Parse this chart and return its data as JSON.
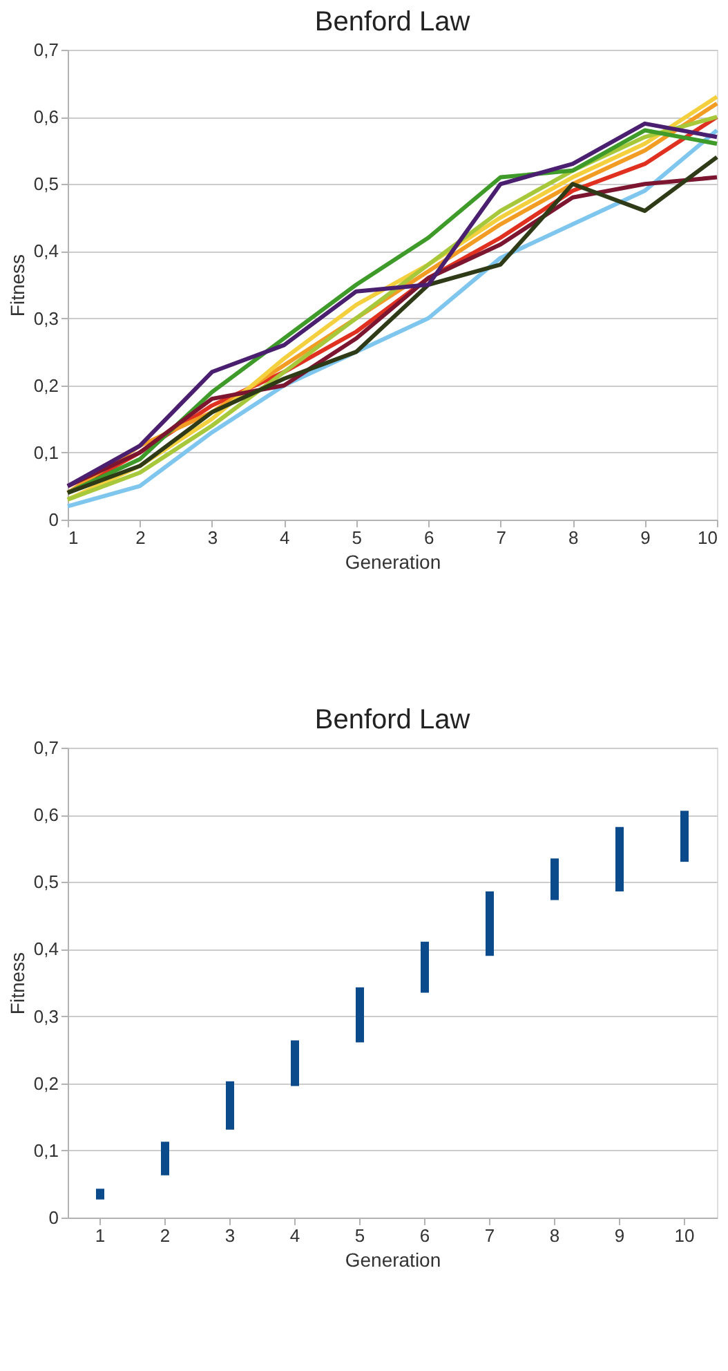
{
  "chart_data": [
    {
      "type": "line",
      "title": "Benford Law",
      "xlabel": "Generation",
      "ylabel": "Fitness",
      "x": [
        1,
        2,
        3,
        4,
        5,
        6,
        7,
        8,
        9,
        10
      ],
      "xlim": [
        1,
        10
      ],
      "xticks": [
        1,
        2,
        3,
        4,
        5,
        6,
        7,
        8,
        9,
        10
      ],
      "ylim": [
        0,
        0.7
      ],
      "yticks": [
        {
          "value": 0,
          "label": "0"
        },
        {
          "value": 0.1,
          "label": "0,1"
        },
        {
          "value": 0.2,
          "label": "0,2"
        },
        {
          "value": 0.3,
          "label": "0,3"
        },
        {
          "value": 0.4,
          "label": "0,4"
        },
        {
          "value": 0.5,
          "label": "0,5"
        },
        {
          "value": 0.6,
          "label": "0,6"
        },
        {
          "value": 0.7,
          "label": "0,7"
        }
      ],
      "grid": "y",
      "legend": false,
      "marker": "none",
      "line_style": "solid",
      "series": [
        {
          "color": "#7fc6ef",
          "values": [
            0.02,
            0.05,
            0.13,
            0.2,
            0.25,
            0.3,
            0.39,
            0.44,
            0.49,
            0.58
          ]
        },
        {
          "color": "#e03020",
          "values": [
            0.04,
            0.1,
            0.17,
            0.22,
            0.28,
            0.36,
            0.42,
            0.49,
            0.53,
            0.6
          ]
        },
        {
          "color": "#f39c24",
          "values": [
            0.04,
            0.11,
            0.16,
            0.23,
            0.3,
            0.37,
            0.44,
            0.5,
            0.55,
            0.62
          ]
        },
        {
          "color": "#f4d03f",
          "values": [
            0.03,
            0.08,
            0.15,
            0.24,
            0.32,
            0.38,
            0.45,
            0.51,
            0.56,
            0.63
          ]
        },
        {
          "color": "#a6c83a",
          "values": [
            0.03,
            0.07,
            0.14,
            0.22,
            0.3,
            0.38,
            0.46,
            0.52,
            0.57,
            0.6
          ]
        },
        {
          "color": "#3e9b2a",
          "values": [
            0.04,
            0.09,
            0.19,
            0.27,
            0.35,
            0.42,
            0.51,
            0.52,
            0.58,
            0.56
          ]
        },
        {
          "color": "#7b1530",
          "values": [
            0.05,
            0.1,
            0.18,
            0.2,
            0.27,
            0.36,
            0.41,
            0.48,
            0.5,
            0.51
          ]
        },
        {
          "color": "#2f3a17",
          "values": [
            0.04,
            0.08,
            0.16,
            0.21,
            0.25,
            0.35,
            0.38,
            0.5,
            0.46,
            0.54
          ]
        },
        {
          "color": "#4b1f6f",
          "values": [
            0.05,
            0.11,
            0.22,
            0.26,
            0.34,
            0.35,
            0.5,
            0.53,
            0.59,
            0.57
          ]
        }
      ]
    },
    {
      "type": "bar",
      "title": "Benford Law",
      "xlabel": "Generation",
      "ylabel": "Fitness",
      "categories": [
        "1",
        "2",
        "3",
        "4",
        "5",
        "6",
        "7",
        "8",
        "9",
        "10"
      ],
      "base": [
        0.027,
        0.063,
        0.131,
        0.196,
        0.261,
        0.335,
        0.39,
        0.473,
        0.486,
        0.53
      ],
      "values": [
        0.016,
        0.05,
        0.072,
        0.068,
        0.082,
        0.076,
        0.096,
        0.062,
        0.096,
        0.076
      ],
      "color": "#0b4a8b",
      "ylim": [
        0,
        0.7
      ],
      "yticks": [
        {
          "value": 0,
          "label": "0"
        },
        {
          "value": 0.1,
          "label": "0,1"
        },
        {
          "value": 0.2,
          "label": "0,2"
        },
        {
          "value": 0.3,
          "label": "0,3"
        },
        {
          "value": 0.4,
          "label": "0,4"
        },
        {
          "value": 0.5,
          "label": "0,5"
        },
        {
          "value": 0.6,
          "label": "0,6"
        },
        {
          "value": 0.7,
          "label": "0,7"
        }
      ],
      "grid": "y"
    }
  ]
}
